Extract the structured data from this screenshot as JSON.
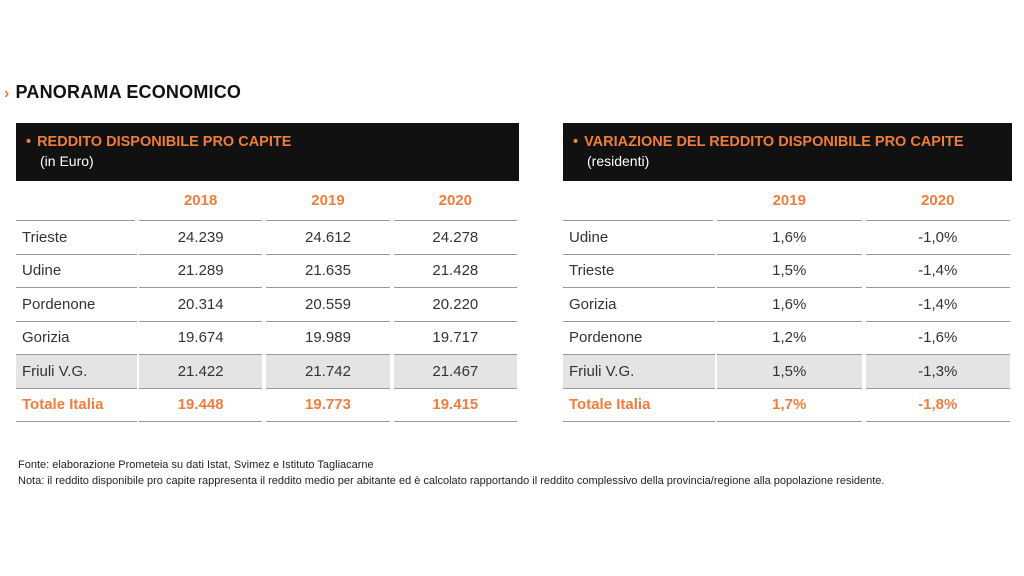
{
  "section_title": "PANORAMA ECONOMICO",
  "colors": {
    "accent": "#ef7d3b",
    "header_bg": "#111111",
    "shade": "#e4e4e4"
  },
  "table_left": {
    "title": "REDDITO DISPONIBILE PRO CAPITE",
    "subtitle": "(in Euro)",
    "columns": [
      "2018",
      "2019",
      "2020"
    ],
    "rows": [
      {
        "label": "Trieste",
        "values": [
          "24.239",
          "24.612",
          "24.278"
        ],
        "shaded": false,
        "total": false
      },
      {
        "label": "Udine",
        "values": [
          "21.289",
          "21.635",
          "21.428"
        ],
        "shaded": false,
        "total": false
      },
      {
        "label": "Pordenone",
        "values": [
          "20.314",
          "20.559",
          "20.220"
        ],
        "shaded": false,
        "total": false
      },
      {
        "label": "Gorizia",
        "values": [
          "19.674",
          "19.989",
          "19.717"
        ],
        "shaded": false,
        "total": false
      },
      {
        "label": "Friuli V.G.",
        "values": [
          "21.422",
          "21.742",
          "21.467"
        ],
        "shaded": true,
        "total": false
      },
      {
        "label": "Totale Italia",
        "values": [
          "19.448",
          "19.773",
          "19.415"
        ],
        "shaded": false,
        "total": true
      }
    ]
  },
  "table_right": {
    "title": "VARIAZIONE DEL REDDITO DISPONIBILE PRO CAPITE",
    "subtitle": "(residenti)",
    "columns": [
      "2019",
      "2020"
    ],
    "rows": [
      {
        "label": "Udine",
        "values": [
          "1,6%",
          "-1,0%"
        ],
        "shaded": false,
        "total": false
      },
      {
        "label": "Trieste",
        "values": [
          "1,5%",
          "-1,4%"
        ],
        "shaded": false,
        "total": false
      },
      {
        "label": "Gorizia",
        "values": [
          "1,6%",
          "-1,4%"
        ],
        "shaded": false,
        "total": false
      },
      {
        "label": "Pordenone",
        "values": [
          "1,2%",
          "-1,6%"
        ],
        "shaded": false,
        "total": false
      },
      {
        "label": "Friuli V.G.",
        "values": [
          "1,5%",
          "-1,3%"
        ],
        "shaded": true,
        "total": false
      },
      {
        "label": "Totale Italia",
        "values": [
          "1,7%",
          "-1,8%"
        ],
        "shaded": false,
        "total": true
      }
    ]
  },
  "notes": {
    "source": "Fonte: elaborazione Prometeia su dati Istat, Svimez e Istituto Tagliacarne",
    "nota": "Nota: il reddito disponibile pro capite rappresenta il reddito medio per abitante ed è calcolato rapportando il reddito complessivo della provincia/regione alla popolazione residente."
  }
}
